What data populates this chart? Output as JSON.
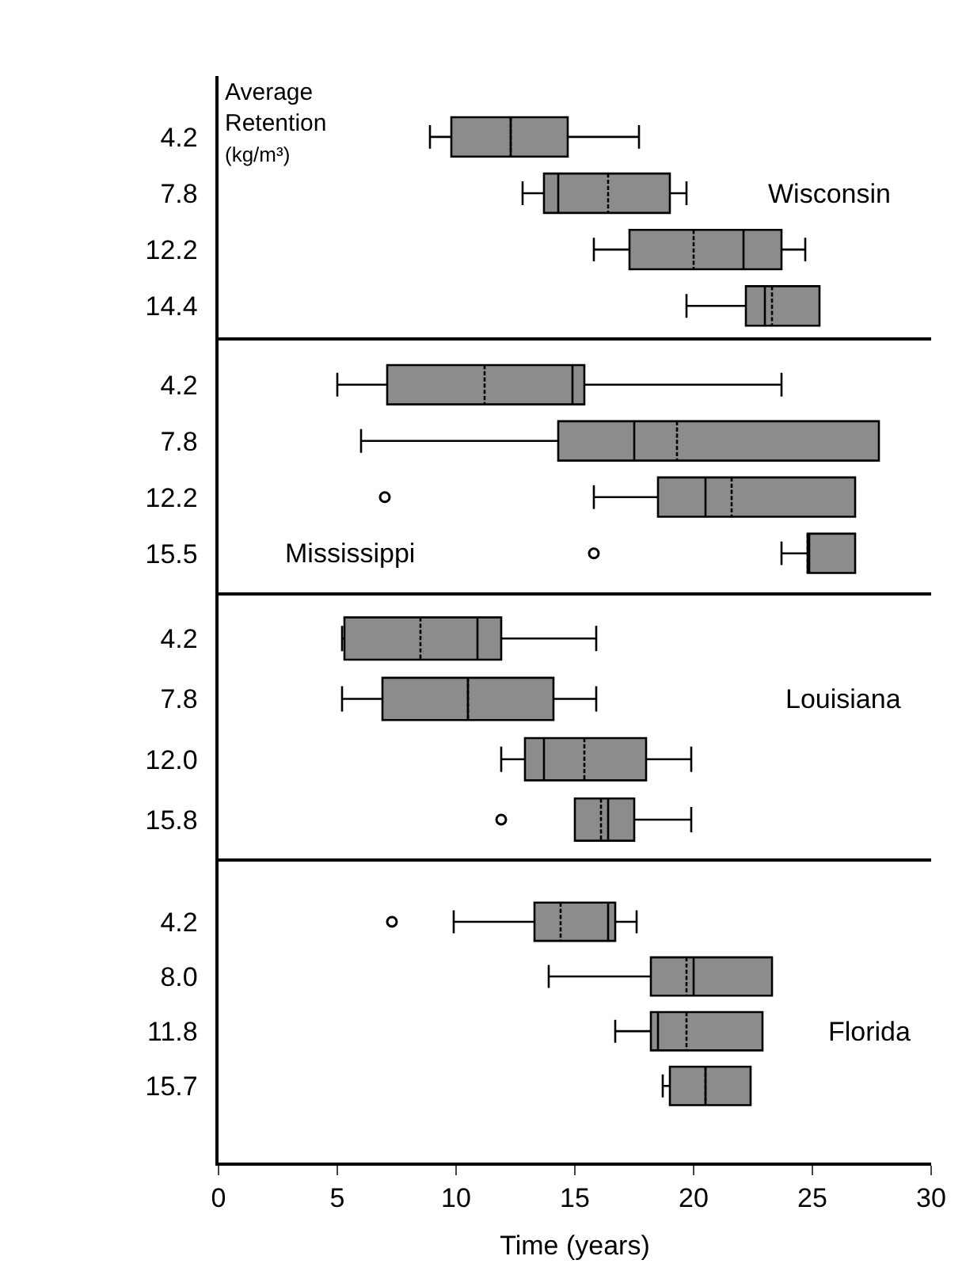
{
  "chart_data": [
    {
      "type": "box",
      "orientation": "horizontal",
      "ylabel": "Average Retention (kg/m³)",
      "annotations": [
        "Wisconsin"
      ],
      "categories": [
        "4.2",
        "7.8",
        "12.2",
        "14.4"
      ],
      "xlim": [
        0,
        30
      ],
      "xticks": [
        0,
        5,
        10,
        15,
        20,
        25,
        30
      ],
      "tick_labels": "y",
      "series": [
        {
          "color": "#8c8c8c",
          "boxes": [
            {
              "low": 8.9,
              "q1": 9.8,
              "median": 12.3,
              "q3": 14.7,
              "high": 17.7,
              "mean": 12.3
            },
            {
              "low": 12.8,
              "q1": 13.7,
              "median": 14.3,
              "q3": 19.0,
              "high": 19.7,
              "mean": 16.4
            },
            {
              "low": 15.8,
              "q1": 17.3,
              "median": 22.1,
              "q3": 23.7,
              "high": 24.7,
              "mean": 20.0
            },
            {
              "low": 19.7,
              "q1": 22.2,
              "median": 23.0,
              "q3": 25.3,
              "high": 25.3,
              "mean": 23.3
            }
          ]
        }
      ]
    },
    {
      "type": "box",
      "orientation": "horizontal",
      "annotations": [
        "Mississippi"
      ],
      "categories": [
        "4.2",
        "7.8",
        "12.2",
        "15.5"
      ],
      "xlim": [
        0,
        30
      ],
      "xticks": [
        0,
        5,
        10,
        15,
        20,
        25,
        30
      ],
      "tick_labels": "y",
      "series": [
        {
          "color": "#8c8c8c",
          "boxes": [
            {
              "low": 5.0,
              "q1": 7.1,
              "median": 14.9,
              "q3": 15.4,
              "high": 23.7,
              "mean": 11.2
            },
            {
              "low": 6.0,
              "q1": 14.3,
              "median": 17.5,
              "q3": 27.8,
              "high": 27.8,
              "mean": 19.3
            },
            {
              "low": 15.8,
              "q1": 18.5,
              "median": 20.5,
              "q3": 26.8,
              "high": 26.8,
              "mean": 21.6,
              "outliers": [
                7.0
              ]
            },
            {
              "low": 23.7,
              "q1": 24.8,
              "median": 24.8,
              "q3": 26.8,
              "high": 26.8,
              "mean": 24.8,
              "outliers": [
                15.8
              ]
            }
          ]
        }
      ]
    },
    {
      "type": "box",
      "orientation": "horizontal",
      "annotations": [
        "Louisiana"
      ],
      "categories": [
        "4.2",
        "7.8",
        "12.0",
        "15.8"
      ],
      "xlim": [
        0,
        30
      ],
      "xticks": [
        0,
        5,
        10,
        15,
        20,
        25,
        30
      ],
      "tick_labels": "y",
      "series": [
        {
          "color": "#8c8c8c",
          "boxes": [
            {
              "low": 5.2,
              "q1": 5.3,
              "median": 10.9,
              "q3": 11.9,
              "high": 15.9,
              "mean": 8.5
            },
            {
              "low": 5.2,
              "q1": 6.9,
              "median": 10.5,
              "q3": 14.1,
              "high": 15.9,
              "mean": 10.5
            },
            {
              "low": 11.9,
              "q1": 12.9,
              "median": 13.7,
              "q3": 18.0,
              "high": 19.9,
              "mean": 15.4
            },
            {
              "low": 15.0,
              "q1": 15.0,
              "median": 16.4,
              "q3": 17.5,
              "high": 19.9,
              "mean": 16.1,
              "outliers": [
                11.9
              ]
            }
          ]
        }
      ]
    },
    {
      "type": "box",
      "orientation": "horizontal",
      "annotations": [
        "Florida"
      ],
      "xlabel": "Time (years)",
      "categories": [
        "4.2",
        "8.0",
        "11.8",
        "15.7"
      ],
      "xlim": [
        0,
        30
      ],
      "xticks": [
        0,
        5,
        10,
        15,
        20,
        25,
        30
      ],
      "series": [
        {
          "color": "#8c8c8c",
          "boxes": [
            {
              "low": 9.9,
              "q1": 13.3,
              "median": 16.4,
              "q3": 16.7,
              "high": 17.6,
              "mean": 14.4,
              "outliers": [
                7.3
              ]
            },
            {
              "low": 13.9,
              "q1": 18.2,
              "median": 20.0,
              "q3": 23.3,
              "high": 23.3,
              "mean": 19.7
            },
            {
              "low": 16.7,
              "q1": 18.2,
              "median": 18.5,
              "q3": 22.9,
              "high": 22.9,
              "mean": 19.7
            },
            {
              "low": 18.7,
              "q1": 19.0,
              "median": 20.5,
              "q3": 22.4,
              "high": 22.4,
              "mean": 20.5
            }
          ]
        }
      ]
    }
  ]
}
